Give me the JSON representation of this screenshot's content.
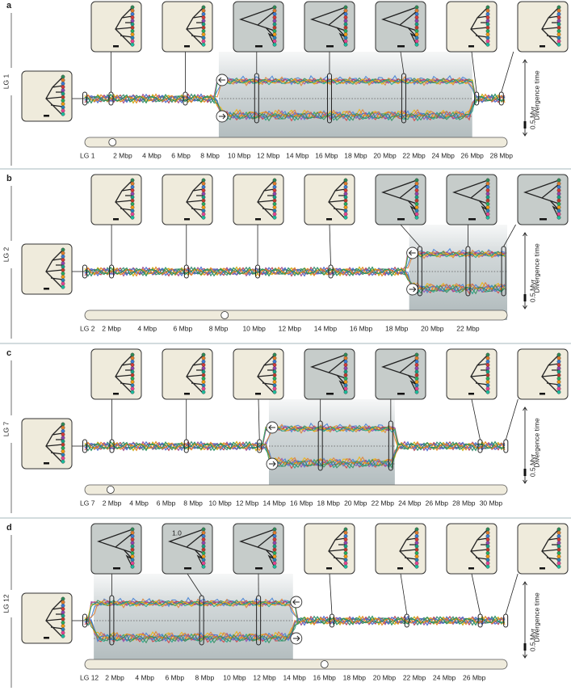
{
  "legend": {
    "title": "Divergence time",
    "scale": "0.5 Myr"
  },
  "panels": [
    {
      "letter": "a",
      "chromosome": "LG 1",
      "xlim": [
        -0.6,
        28.4
      ],
      "inversion": [
        8.6,
        26.0
      ],
      "centromere": 1.3,
      "xticks": [
        {
          "value": 2,
          "label": "2 Mbp"
        },
        {
          "value": 4,
          "label": "4 Mbp"
        },
        {
          "value": 6,
          "label": "6 Mbp"
        },
        {
          "value": 8,
          "label": "8 Mbp"
        },
        {
          "value": 10,
          "label": "10 Mbp"
        },
        {
          "value": 12,
          "label": "12 Mbp"
        },
        {
          "value": 14,
          "label": "14 Mbp"
        },
        {
          "value": 16,
          "label": "16 Mbp"
        },
        {
          "value": 18,
          "label": "18 Mbp"
        },
        {
          "value": 20,
          "label": "20 Mbp"
        },
        {
          "value": 22,
          "label": "22 Mbp"
        },
        {
          "value": 24,
          "label": "24 Mbp"
        },
        {
          "value": 26,
          "label": "26 Mbp"
        },
        {
          "value": 28,
          "label": "28 Mbp"
        }
      ],
      "trees": [
        {
          "pos": -0.6,
          "inverted": false
        },
        {
          "pos": 1.2,
          "inverted": false
        },
        {
          "pos": 6.3,
          "inverted": false
        },
        {
          "pos": 11.2,
          "inverted": true
        },
        {
          "pos": 16.2,
          "inverted": true
        },
        {
          "pos": 21.3,
          "inverted": true
        },
        {
          "pos": 26.3,
          "inverted": false
        },
        {
          "pos": 28.0,
          "inverted": false
        }
      ]
    },
    {
      "letter": "b",
      "chromosome": "LG 2",
      "xlim": [
        0.5,
        24.2
      ],
      "inversion": [
        18.7,
        24.2
      ],
      "centromere": 8.35,
      "xticks": [
        {
          "value": 2,
          "label": "2 Mbp"
        },
        {
          "value": 4,
          "label": "4 Mbp"
        },
        {
          "value": 6,
          "label": "6 Mbp"
        },
        {
          "value": 8,
          "label": "8 Mbp"
        },
        {
          "value": 10,
          "label": "10 Mbp"
        },
        {
          "value": 12,
          "label": "12 Mbp"
        },
        {
          "value": 14,
          "label": "14 Mbp"
        },
        {
          "value": 16,
          "label": "16 Mbp"
        },
        {
          "value": 18,
          "label": "18 Mbp"
        },
        {
          "value": 20,
          "label": "20 Mbp"
        },
        {
          "value": 22,
          "label": "22 Mbp"
        }
      ],
      "trees": [
        {
          "pos": 0.5,
          "inverted": false
        },
        {
          "pos": 2.0,
          "inverted": false
        },
        {
          "pos": 6.2,
          "inverted": false
        },
        {
          "pos": 10.2,
          "inverted": false
        },
        {
          "pos": 14.3,
          "inverted": false
        },
        {
          "pos": 19.3,
          "inverted": true
        },
        {
          "pos": 22.0,
          "inverted": true
        },
        {
          "pos": 24.0,
          "inverted": true
        }
      ]
    },
    {
      "letter": "c",
      "chromosome": "LG 7",
      "xlim": [
        0,
        31.2
      ],
      "inversion": [
        13.6,
        22.9
      ],
      "centromere": 1.9,
      "xticks": [
        {
          "value": 2,
          "label": "2 Mbp"
        },
        {
          "value": 4,
          "label": "4 Mbp"
        },
        {
          "value": 6,
          "label": "6 Mbp"
        },
        {
          "value": 8,
          "label": "8 Mbp"
        },
        {
          "value": 10,
          "label": "10 Mbp"
        },
        {
          "value": 12,
          "label": "12 Mbp"
        },
        {
          "value": 14,
          "label": "14 Mbp"
        },
        {
          "value": 16,
          "label": "16 Mbp"
        },
        {
          "value": 18,
          "label": "18 Mbp"
        },
        {
          "value": 20,
          "label": "20 Mbp"
        },
        {
          "value": 22,
          "label": "22 Mbp"
        },
        {
          "value": 24,
          "label": "24 Mbp"
        },
        {
          "value": 26,
          "label": "26 Mbp"
        },
        {
          "value": 28,
          "label": "28 Mbp"
        },
        {
          "value": 30,
          "label": "30 Mbp"
        }
      ],
      "trees": [
        {
          "pos": 0,
          "inverted": false
        },
        {
          "pos": 2.0,
          "inverted": false
        },
        {
          "pos": 7.5,
          "inverted": false
        },
        {
          "pos": 12.9,
          "inverted": false
        },
        {
          "pos": 17.4,
          "inverted": true
        },
        {
          "pos": 22.6,
          "inverted": true
        },
        {
          "pos": 29.2,
          "inverted": false
        },
        {
          "pos": 31.1,
          "inverted": false
        }
      ]
    },
    {
      "letter": "d",
      "chromosome": "LG 12",
      "xlim": [
        0,
        28.2
      ],
      "inversion": [
        0.6,
        13.9
      ],
      "centromere": 16.0,
      "xticks": [
        {
          "value": 2,
          "label": "2 Mbp"
        },
        {
          "value": 4,
          "label": "4 Mbp"
        },
        {
          "value": 6,
          "label": "6 Mbp"
        },
        {
          "value": 8,
          "label": "8 Mbp"
        },
        {
          "value": 10,
          "label": "10 Mbp"
        },
        {
          "value": 12,
          "label": "12 Mbp"
        },
        {
          "value": 14,
          "label": "14 Mbp"
        },
        {
          "value": 16,
          "label": "16 Mbp"
        },
        {
          "value": 18,
          "label": "18 Mbp"
        },
        {
          "value": 20,
          "label": "20 Mbp"
        },
        {
          "value": 22,
          "label": "22 Mbp"
        },
        {
          "value": 24,
          "label": "24 Mbp"
        },
        {
          "value": 26,
          "label": "26 Mbp"
        }
      ],
      "trees": [
        {
          "pos": 0,
          "inverted": false
        },
        {
          "pos": 1.8,
          "inverted": true
        },
        {
          "pos": 7.8,
          "inverted": true,
          "support": "1.0"
        },
        {
          "pos": 11.6,
          "inverted": true
        },
        {
          "pos": 16.5,
          "inverted": false
        },
        {
          "pos": 21.5,
          "inverted": false
        },
        {
          "pos": 26.4,
          "inverted": false
        },
        {
          "pos": 28.1,
          "inverted": false
        }
      ]
    }
  ]
}
